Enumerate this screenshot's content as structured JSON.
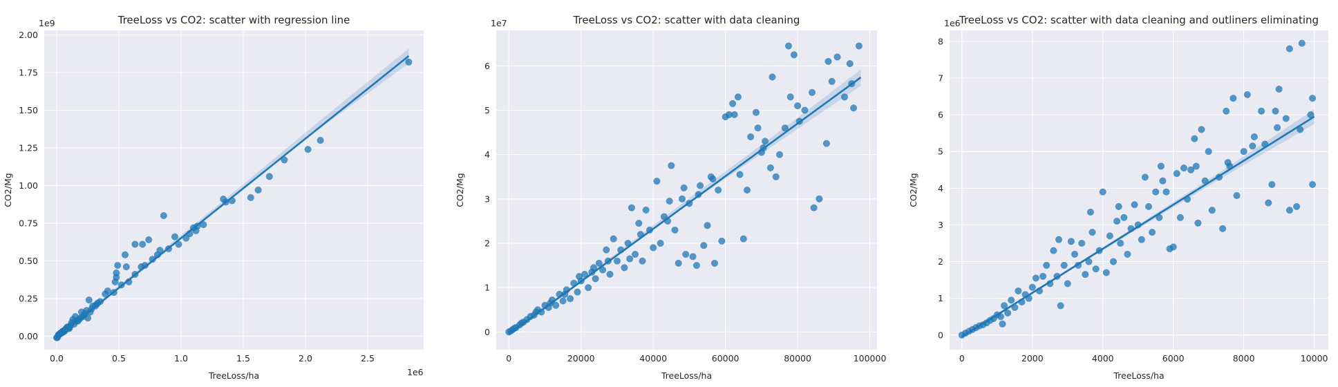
{
  "chart_data": [
    {
      "type": "scatter",
      "title": "TreeLoss vs CO2: scatter with regression line",
      "xlabel": "TreeLoss/ha",
      "ylabel": "CO2/Mg",
      "x_multiplier": "1e6",
      "y_multiplier": "1e9",
      "xlim": [
        -0.1,
        2.95
      ],
      "ylim": [
        -0.09,
        2.03
      ],
      "x_ticks": [
        0.0,
        0.5,
        1.0,
        1.5,
        2.0,
        2.5
      ],
      "x_tick_labels": [
        "0.0",
        "0.5",
        "1.0",
        "1.5",
        "2.0",
        "2.5"
      ],
      "y_ticks": [
        0.0,
        0.25,
        0.5,
        0.75,
        1.0,
        1.25,
        1.5,
        1.75,
        2.0
      ],
      "y_tick_labels": [
        "0.00",
        "0.25",
        "0.50",
        "0.75",
        "1.00",
        "1.25",
        "1.50",
        "1.75",
        "2.00"
      ],
      "grid": true,
      "regression_line": {
        "x": [
          0.0,
          2.83
        ],
        "y": [
          -0.01,
          1.86
        ]
      },
      "confidence_band": {
        "x": [
          0.0,
          0.7,
          1.4,
          2.1,
          2.83
        ],
        "lower": [
          -0.02,
          0.45,
          0.91,
          1.37,
          1.81
        ],
        "upper": [
          0.0,
          0.47,
          0.94,
          1.42,
          1.91
        ]
      },
      "points": [
        [
          2.83,
          1.82
        ],
        [
          2.12,
          1.3
        ],
        [
          2.02,
          1.24
        ],
        [
          1.83,
          1.17
        ],
        [
          1.71,
          1.06
        ],
        [
          1.62,
          0.97
        ],
        [
          1.56,
          0.92
        ],
        [
          1.41,
          0.9
        ],
        [
          1.34,
          0.91
        ],
        [
          1.36,
          0.89
        ],
        [
          1.13,
          0.73
        ],
        [
          1.12,
          0.7
        ],
        [
          1.1,
          0.72
        ],
        [
          1.07,
          0.68
        ],
        [
          0.98,
          0.61
        ],
        [
          0.95,
          0.66
        ],
        [
          0.86,
          0.8
        ],
        [
          0.81,
          0.54
        ],
        [
          0.83,
          0.57
        ],
        [
          0.74,
          0.64
        ],
        [
          0.69,
          0.61
        ],
        [
          0.63,
          0.61
        ],
        [
          0.68,
          0.46
        ],
        [
          0.63,
          0.41
        ],
        [
          0.55,
          0.54
        ],
        [
          0.56,
          0.46
        ],
        [
          0.49,
          0.47
        ],
        [
          0.48,
          0.42
        ],
        [
          0.48,
          0.39
        ],
        [
          0.47,
          0.36
        ],
        [
          0.46,
          0.29
        ],
        [
          0.41,
          0.3
        ],
        [
          0.39,
          0.28
        ],
        [
          0.35,
          0.23
        ],
        [
          0.33,
          0.22
        ],
        [
          0.31,
          0.2
        ],
        [
          0.27,
          0.16
        ],
        [
          0.26,
          0.24
        ],
        [
          0.25,
          0.12
        ],
        [
          0.22,
          0.14
        ],
        [
          0.2,
          0.16
        ],
        [
          0.19,
          0.12
        ],
        [
          0.17,
          0.1
        ],
        [
          0.15,
          0.13
        ],
        [
          0.13,
          0.11
        ],
        [
          0.12,
          0.09
        ],
        [
          0.11,
          0.07
        ],
        [
          0.1,
          0.05
        ],
        [
          0.09,
          0.06
        ],
        [
          0.08,
          0.05
        ],
        [
          0.07,
          0.04
        ],
        [
          0.06,
          0.03
        ],
        [
          0.05,
          0.03
        ],
        [
          0.04,
          0.02
        ],
        [
          0.03,
          0.02
        ],
        [
          0.02,
          0.01
        ],
        [
          0.01,
          0.0
        ],
        [
          0.005,
          -0.01
        ],
        [
          0.0,
          -0.01
        ],
        [
          0.015,
          0.01
        ],
        [
          0.025,
          0.015
        ],
        [
          0.035,
          0.02
        ],
        [
          0.045,
          0.03
        ],
        [
          0.055,
          0.035
        ],
        [
          0.065,
          0.04
        ],
        [
          0.075,
          0.05
        ],
        [
          0.085,
          0.06
        ],
        [
          0.095,
          0.055
        ],
        [
          0.105,
          0.06
        ],
        [
          0.14,
          0.08
        ],
        [
          0.16,
          0.1
        ],
        [
          0.18,
          0.11
        ],
        [
          0.21,
          0.13
        ],
        [
          0.23,
          0.15
        ],
        [
          0.24,
          0.17
        ],
        [
          0.28,
          0.18
        ],
        [
          0.29,
          0.2
        ],
        [
          0.32,
          0.21
        ],
        [
          0.52,
          0.34
        ],
        [
          0.58,
          0.36
        ],
        [
          0.71,
          0.47
        ],
        [
          0.77,
          0.51
        ],
        [
          0.9,
          0.58
        ],
        [
          1.04,
          0.65
        ],
        [
          1.18,
          0.74
        ]
      ]
    },
    {
      "type": "scatter",
      "title": "TreeLoss vs CO2: scatter with data cleaning",
      "xlabel": "TreeLoss/ha",
      "ylabel": "CO2/Mg",
      "y_multiplier": "1e7",
      "xlim": [
        -3500,
        102000
      ],
      "ylim": [
        -0.4,
        6.8
      ],
      "x_ticks": [
        0,
        20000,
        40000,
        60000,
        80000,
        100000
      ],
      "x_tick_labels": [
        "0",
        "20000",
        "40000",
        "60000",
        "80000",
        "100000"
      ],
      "y_ticks": [
        0,
        1,
        2,
        3,
        4,
        5,
        6
      ],
      "y_tick_labels": [
        "0",
        "1",
        "2",
        "3",
        "4",
        "5",
        "6"
      ],
      "grid": true,
      "regression_line": {
        "x": [
          0,
          97500
        ],
        "y": [
          -0.05,
          5.74
        ]
      },
      "confidence_band": {
        "x": [
          0,
          25000,
          50000,
          75000,
          97500
        ],
        "lower": [
          -0.08,
          1.42,
          2.9,
          4.3,
          5.55
        ],
        "upper": [
          -0.02,
          1.48,
          3.02,
          4.52,
          5.92
        ]
      },
      "points": [
        [
          97000,
          6.45
        ],
        [
          95500,
          5.05
        ],
        [
          94500,
          6.05
        ],
        [
          93000,
          5.3
        ],
        [
          91000,
          6.2
        ],
        [
          89500,
          5.65
        ],
        [
          88500,
          6.1
        ],
        [
          86000,
          3.0
        ],
        [
          84500,
          2.8
        ],
        [
          84000,
          5.4
        ],
        [
          82000,
          5.0
        ],
        [
          80000,
          5.1
        ],
        [
          79000,
          6.25
        ],
        [
          78000,
          5.3
        ],
        [
          77500,
          6.45
        ],
        [
          76500,
          4.6
        ],
        [
          75000,
          4.0
        ],
        [
          74000,
          3.5
        ],
        [
          73000,
          5.75
        ],
        [
          72500,
          3.7
        ],
        [
          71000,
          4.3
        ],
        [
          70000,
          4.05
        ],
        [
          69000,
          4.6
        ],
        [
          68500,
          4.95
        ],
        [
          67000,
          4.4
        ],
        [
          66000,
          3.2
        ],
        [
          65000,
          2.1
        ],
        [
          64000,
          3.55
        ],
        [
          63500,
          5.3
        ],
        [
          62000,
          5.15
        ],
        [
          61000,
          4.9
        ],
        [
          60000,
          4.85
        ],
        [
          59000,
          2.05
        ],
        [
          58000,
          3.2
        ],
        [
          57000,
          1.55
        ],
        [
          56000,
          3.5
        ],
        [
          55000,
          2.4
        ],
        [
          54000,
          1.95
        ],
        [
          53000,
          3.3
        ],
        [
          52000,
          1.5
        ],
        [
          51000,
          1.7
        ],
        [
          50000,
          2.9
        ],
        [
          49000,
          1.75
        ],
        [
          48000,
          3.0
        ],
        [
          47000,
          1.55
        ],
        [
          46000,
          2.3
        ],
        [
          45000,
          3.75
        ],
        [
          44000,
          2.5
        ],
        [
          43000,
          2.6
        ],
        [
          42000,
          2.0
        ],
        [
          41000,
          3.4
        ],
        [
          40000,
          1.9
        ],
        [
          39000,
          2.3
        ],
        [
          38000,
          2.75
        ],
        [
          37000,
          1.6
        ],
        [
          36000,
          2.45
        ],
        [
          35000,
          1.75
        ],
        [
          34000,
          2.8
        ],
        [
          33000,
          2.0
        ],
        [
          32000,
          1.45
        ],
        [
          31000,
          1.85
        ],
        [
          30000,
          1.6
        ],
        [
          29000,
          2.1
        ],
        [
          28000,
          1.3
        ],
        [
          27000,
          1.85
        ],
        [
          26000,
          1.4
        ],
        [
          25000,
          1.55
        ],
        [
          24000,
          1.2
        ],
        [
          23000,
          1.35
        ],
        [
          22000,
          1.0
        ],
        [
          21000,
          1.3
        ],
        [
          20000,
          1.15
        ],
        [
          19000,
          0.9
        ],
        [
          18000,
          1.1
        ],
        [
          17000,
          0.75
        ],
        [
          16000,
          0.95
        ],
        [
          15000,
          0.7
        ],
        [
          14000,
          0.85
        ],
        [
          13000,
          0.6
        ],
        [
          12000,
          0.72
        ],
        [
          11000,
          0.55
        ],
        [
          10000,
          0.6
        ],
        [
          9000,
          0.45
        ],
        [
          8000,
          0.5
        ],
        [
          7000,
          0.38
        ],
        [
          6000,
          0.35
        ],
        [
          5000,
          0.28
        ],
        [
          4000,
          0.22
        ],
        [
          3000,
          0.16
        ],
        [
          2000,
          0.1
        ],
        [
          1000,
          0.05
        ],
        [
          500,
          0.02
        ],
        [
          0,
          0.0
        ],
        [
          62500,
          4.9
        ],
        [
          70500,
          4.15
        ],
        [
          80500,
          4.75
        ],
        [
          88000,
          4.25
        ],
        [
          95000,
          5.6
        ],
        [
          48500,
          3.25
        ],
        [
          52500,
          3.1
        ],
        [
          56500,
          3.45
        ],
        [
          44500,
          2.95
        ],
        [
          36500,
          2.2
        ],
        [
          33500,
          1.65
        ],
        [
          27500,
          1.6
        ],
        [
          23500,
          1.45
        ],
        [
          19500,
          1.25
        ],
        [
          15500,
          0.85
        ],
        [
          11500,
          0.65
        ],
        [
          7500,
          0.45
        ],
        [
          3500,
          0.2
        ],
        [
          1500,
          0.08
        ]
      ]
    },
    {
      "type": "scatter",
      "title": "TreeLoss vs CO2: scatter with data cleaning and outliners eliminating",
      "xlabel": "TreeLoss/ha",
      "ylabel": "CO2/Mg",
      "y_multiplier": "1e6",
      "xlim": [
        -350,
        10400
      ],
      "ylim": [
        -0.4,
        8.3
      ],
      "x_ticks": [
        0,
        2000,
        4000,
        6000,
        8000,
        10000
      ],
      "x_tick_labels": [
        "0",
        "2000",
        "4000",
        "6000",
        "8000",
        "10000"
      ],
      "y_ticks": [
        0,
        1,
        2,
        3,
        4,
        5,
        6,
        7,
        8
      ],
      "y_tick_labels": [
        "0",
        "1",
        "2",
        "3",
        "4",
        "5",
        "6",
        "7",
        "8"
      ],
      "grid": true,
      "regression_line": {
        "x": [
          0,
          10000
        ],
        "y": [
          -0.05,
          5.95
        ]
      },
      "confidence_band": {
        "x": [
          0,
          2500,
          5000,
          7500,
          10000
        ],
        "lower": [
          -0.08,
          1.42,
          2.9,
          4.35,
          5.75
        ],
        "upper": [
          -0.02,
          1.48,
          3.0,
          4.55,
          6.15
        ]
      },
      "points": [
        [
          9650,
          7.95
        ],
        [
          9300,
          7.8
        ],
        [
          9950,
          6.45
        ],
        [
          9900,
          6.0
        ],
        [
          9950,
          4.1
        ],
        [
          9500,
          3.5
        ],
        [
          9300,
          3.4
        ],
        [
          9600,
          5.6
        ],
        [
          9200,
          5.9
        ],
        [
          9000,
          6.7
        ],
        [
          8900,
          6.1
        ],
        [
          8800,
          4.1
        ],
        [
          8700,
          3.6
        ],
        [
          8600,
          5.2
        ],
        [
          8500,
          6.1
        ],
        [
          8300,
          5.4
        ],
        [
          8100,
          6.55
        ],
        [
          8000,
          5.0
        ],
        [
          7800,
          3.8
        ],
        [
          7700,
          6.45
        ],
        [
          7600,
          4.6
        ],
        [
          7500,
          6.1
        ],
        [
          7400,
          2.9
        ],
        [
          7300,
          4.3
        ],
        [
          7100,
          3.4
        ],
        [
          7000,
          5.0
        ],
        [
          6900,
          4.2
        ],
        [
          6800,
          5.6
        ],
        [
          6700,
          3.05
        ],
        [
          6600,
          5.35
        ],
        [
          6500,
          4.5
        ],
        [
          6400,
          3.7
        ],
        [
          6300,
          4.55
        ],
        [
          6200,
          3.2
        ],
        [
          6100,
          4.4
        ],
        [
          6000,
          2.4
        ],
        [
          5900,
          2.35
        ],
        [
          5800,
          3.9
        ],
        [
          5700,
          4.2
        ],
        [
          5600,
          3.2
        ],
        [
          5500,
          3.9
        ],
        [
          5400,
          2.8
        ],
        [
          5300,
          3.5
        ],
        [
          5200,
          4.3
        ],
        [
          5100,
          2.6
        ],
        [
          5000,
          3.0
        ],
        [
          4900,
          3.55
        ],
        [
          4800,
          2.9
        ],
        [
          4700,
          2.2
        ],
        [
          4600,
          3.2
        ],
        [
          4500,
          2.5
        ],
        [
          4400,
          3.1
        ],
        [
          4300,
          2.0
        ],
        [
          4200,
          2.7
        ],
        [
          4100,
          1.7
        ],
        [
          4000,
          3.9
        ],
        [
          3900,
          2.3
        ],
        [
          3800,
          1.8
        ],
        [
          3700,
          2.8
        ],
        [
          3600,
          2.0
        ],
        [
          3500,
          1.65
        ],
        [
          3400,
          2.5
        ],
        [
          3300,
          1.9
        ],
        [
          3200,
          2.2
        ],
        [
          3100,
          2.55
        ],
        [
          3000,
          1.4
        ],
        [
          2900,
          1.9
        ],
        [
          2800,
          0.8
        ],
        [
          2700,
          1.6
        ],
        [
          2600,
          2.3
        ],
        [
          2500,
          1.4
        ],
        [
          2400,
          1.9
        ],
        [
          2300,
          1.6
        ],
        [
          2200,
          1.2
        ],
        [
          2100,
          1.55
        ],
        [
          2000,
          1.3
        ],
        [
          1900,
          1.0
        ],
        [
          1800,
          1.1
        ],
        [
          1700,
          0.9
        ],
        [
          1600,
          1.2
        ],
        [
          1500,
          0.75
        ],
        [
          1400,
          0.95
        ],
        [
          1300,
          0.6
        ],
        [
          1200,
          0.8
        ],
        [
          1100,
          0.5
        ],
        [
          1000,
          0.55
        ],
        [
          900,
          0.45
        ],
        [
          800,
          0.4
        ],
        [
          700,
          0.33
        ],
        [
          600,
          0.28
        ],
        [
          500,
          0.25
        ],
        [
          400,
          0.2
        ],
        [
          300,
          0.15
        ],
        [
          200,
          0.1
        ],
        [
          100,
          0.05
        ],
        [
          0,
          0.0
        ],
        [
          1150,
          0.3
        ],
        [
          2750,
          2.6
        ],
        [
          3650,
          3.35
        ],
        [
          4450,
          3.5
        ],
        [
          5650,
          4.6
        ],
        [
          6650,
          4.6
        ],
        [
          7550,
          4.7
        ],
        [
          8250,
          5.15
        ],
        [
          8950,
          5.65
        ]
      ]
    }
  ]
}
